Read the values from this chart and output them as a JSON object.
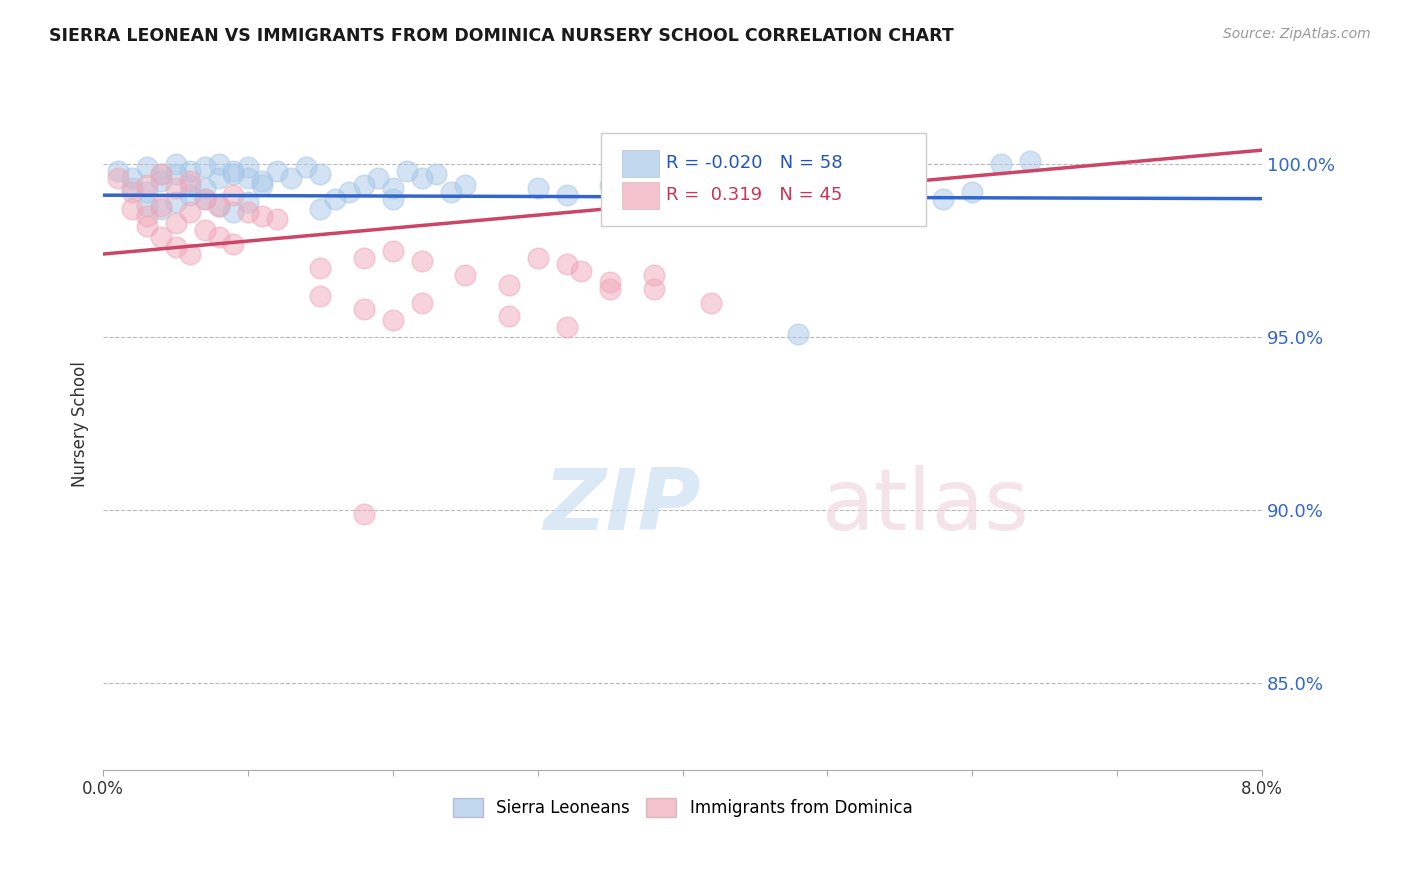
{
  "title": "SIERRA LEONEAN VS IMMIGRANTS FROM DOMINICA NURSERY SCHOOL CORRELATION CHART",
  "source": "Source: ZipAtlas.com",
  "ylabel": "Nursery School",
  "ytick_values": [
    0.85,
    0.9,
    0.95,
    1.0
  ],
  "xmin": 0.0,
  "xmax": 0.08,
  "ymin": 0.825,
  "ymax": 1.025,
  "legend_blue_R": "-0.020",
  "legend_blue_N": "58",
  "legend_pink_R": "0.319",
  "legend_pink_N": "45",
  "blue_color": "#a8c8e8",
  "pink_color": "#f0a8b8",
  "blue_line_color": "#3366cc",
  "pink_line_color": "#cc4466",
  "background_color": "#ffffff",
  "grid_color": "#bbbbbb",
  "blue_trend_y0": 0.991,
  "blue_trend_y1": 0.99,
  "pink_trend_y0": 0.974,
  "pink_trend_y1": 1.004,
  "blue_x": [
    0.001,
    0.002,
    0.003,
    0.004,
    0.005,
    0.006,
    0.007,
    0.008,
    0.009,
    0.01,
    0.011,
    0.012,
    0.013,
    0.014,
    0.015,
    0.002,
    0.003,
    0.004,
    0.005,
    0.006,
    0.007,
    0.008,
    0.009,
    0.01,
    0.011,
    0.016,
    0.017,
    0.018,
    0.019,
    0.02,
    0.021,
    0.022,
    0.023,
    0.024,
    0.025,
    0.03,
    0.032,
    0.035,
    0.038,
    0.04,
    0.042,
    0.048,
    0.05,
    0.055,
    0.058,
    0.06,
    0.062,
    0.064,
    0.003,
    0.004,
    0.005,
    0.006,
    0.007,
    0.008,
    0.009,
    0.01,
    0.015,
    0.02
  ],
  "blue_y": [
    0.998,
    0.996,
    0.999,
    0.997,
    1.0,
    0.998,
    0.999,
    1.0,
    0.997,
    0.996,
    0.994,
    0.998,
    0.996,
    0.999,
    0.997,
    0.993,
    0.992,
    0.995,
    0.997,
    0.994,
    0.993,
    0.996,
    0.998,
    0.999,
    0.995,
    0.99,
    0.992,
    0.994,
    0.996,
    0.993,
    0.998,
    0.996,
    0.997,
    0.992,
    0.994,
    0.993,
    0.991,
    0.994,
    0.993,
    0.991,
    0.993,
    0.951,
    0.99,
    0.993,
    0.99,
    0.992,
    1.0,
    1.001,
    0.988,
    0.987,
    0.989,
    0.991,
    0.99,
    0.988,
    0.986,
    0.989,
    0.987,
    0.99
  ],
  "pink_x": [
    0.001,
    0.002,
    0.003,
    0.004,
    0.005,
    0.006,
    0.007,
    0.008,
    0.009,
    0.01,
    0.011,
    0.012,
    0.002,
    0.003,
    0.004,
    0.005,
    0.006,
    0.007,
    0.008,
    0.009,
    0.003,
    0.004,
    0.005,
    0.006,
    0.015,
    0.018,
    0.02,
    0.022,
    0.025,
    0.028,
    0.03,
    0.032,
    0.033,
    0.035,
    0.038,
    0.015,
    0.018,
    0.022,
    0.028,
    0.032,
    0.02,
    0.038,
    0.035,
    0.042,
    0.018
  ],
  "pink_y": [
    0.996,
    0.992,
    0.994,
    0.997,
    0.993,
    0.995,
    0.99,
    0.988,
    0.991,
    0.986,
    0.985,
    0.984,
    0.987,
    0.985,
    0.988,
    0.983,
    0.986,
    0.981,
    0.979,
    0.977,
    0.982,
    0.979,
    0.976,
    0.974,
    0.97,
    0.973,
    0.975,
    0.972,
    0.968,
    0.965,
    0.973,
    0.971,
    0.969,
    0.966,
    0.964,
    0.962,
    0.958,
    0.96,
    0.956,
    0.953,
    0.955,
    0.968,
    0.964,
    0.96,
    0.899
  ]
}
